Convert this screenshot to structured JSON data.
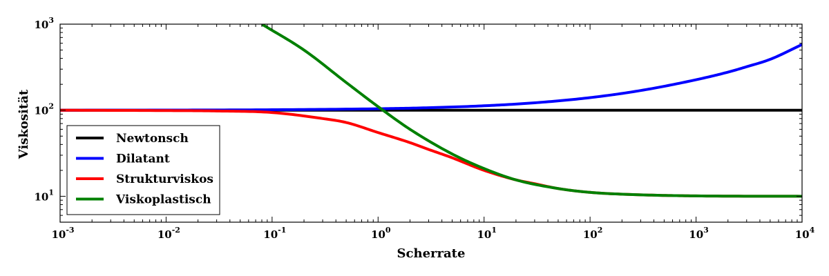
{
  "chart_data": {
    "type": "line",
    "title": "",
    "xlabel": "Scherrate",
    "ylabel": "Viskosität",
    "xscale": "log",
    "yscale": "log",
    "xlim": [
      0.001,
      10000
    ],
    "ylim": [
      5,
      1000
    ],
    "grid": false,
    "legend_position": "lower-left",
    "x_ticks": [
      {
        "value": 0.001,
        "base": "10",
        "exp": "-3"
      },
      {
        "value": 0.01,
        "base": "10",
        "exp": "-2"
      },
      {
        "value": 0.1,
        "base": "10",
        "exp": "-1"
      },
      {
        "value": 1,
        "base": "10",
        "exp": "0"
      },
      {
        "value": 10,
        "base": "10",
        "exp": "1"
      },
      {
        "value": 100,
        "base": "10",
        "exp": "2"
      },
      {
        "value": 1000,
        "base": "10",
        "exp": "3"
      },
      {
        "value": 10000,
        "base": "10",
        "exp": "4"
      }
    ],
    "y_ticks": [
      {
        "value": 10,
        "base": "10",
        "exp": "1"
      },
      {
        "value": 100,
        "base": "10",
        "exp": "2"
      },
      {
        "value": 1000,
        "base": "10",
        "exp": "3"
      }
    ],
    "series": [
      {
        "name": "Newtonsch",
        "color": "#000000",
        "x": [
          0.001,
          0.01,
          0.1,
          1,
          10,
          100,
          1000,
          10000
        ],
        "y": [
          100,
          100,
          100,
          100,
          100,
          100,
          100,
          100
        ]
      },
      {
        "name": "Dilatant",
        "color": "#0000ff",
        "x": [
          0.001,
          0.01,
          0.1,
          1,
          3,
          10,
          30,
          100,
          300,
          1000,
          2000,
          3000,
          5000,
          10000
        ],
        "y": [
          100,
          100.4,
          101.3,
          104,
          106.9,
          112.6,
          121.9,
          140,
          169.3,
          226,
          277,
          320,
          390,
          580
        ]
      },
      {
        "name": "Strukturviskos",
        "color": "#ff0000",
        "x": [
          0.001,
          0.01,
          0.03,
          0.1,
          0.3,
          0.5,
          1,
          2,
          3,
          5,
          10,
          20,
          30,
          50,
          100,
          300,
          1000,
          10000
        ],
        "y": [
          100,
          99,
          98,
          94,
          80,
          72,
          55,
          42,
          35,
          28,
          20,
          15.5,
          14,
          12.3,
          11.1,
          10.4,
          10.1,
          10
        ]
      },
      {
        "name": "Viskoplastisch",
        "color": "#008000",
        "x": [
          0.08,
          0.2,
          0.5,
          1,
          2,
          5,
          10,
          20,
          50,
          100,
          300,
          1000,
          10000
        ],
        "y": [
          1000,
          500,
          210,
          110,
          60,
          31,
          21,
          15.5,
          12.3,
          11.1,
          10.4,
          10.1,
          10
        ]
      }
    ]
  }
}
